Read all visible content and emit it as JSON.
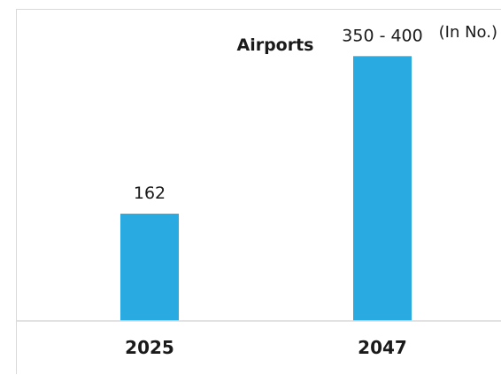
{
  "chart_data": {
    "type": "bar",
    "title": "Airports",
    "unit_note": "(In No.)",
    "categories": [
      "2025",
      "2047"
    ],
    "values": [
      162,
      400
    ],
    "value_labels": [
      "162",
      "350 - 400"
    ],
    "ylim": [
      0,
      450
    ],
    "grid": false,
    "legend": "none",
    "bar_color": "#29abe2",
    "baseline_color": "#d9d9d9",
    "text_color": "#1a1a1a"
  }
}
